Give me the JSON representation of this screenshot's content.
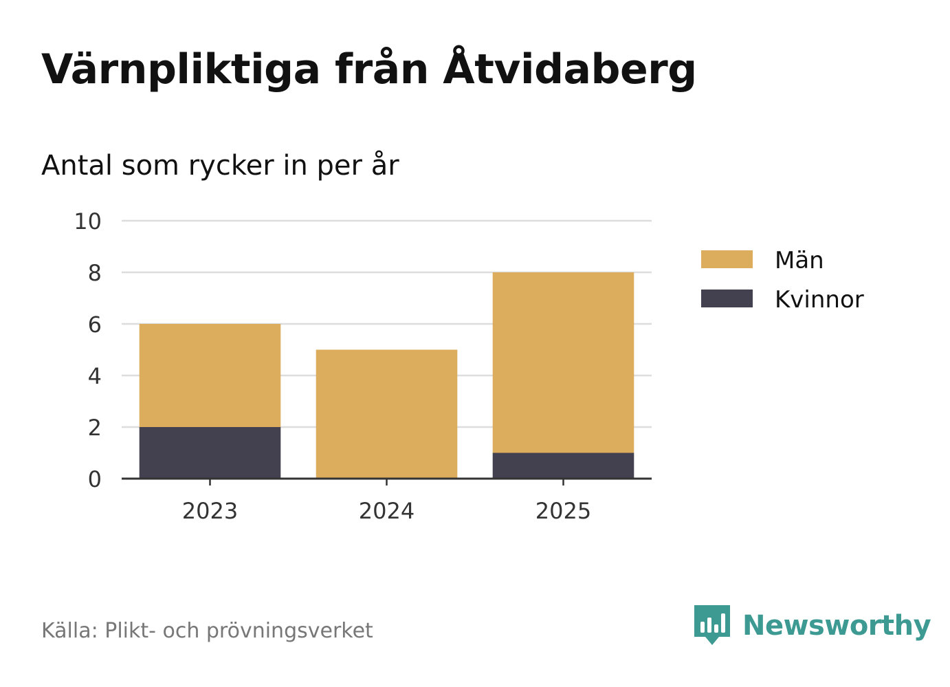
{
  "header": {
    "title": "Värnpliktiga från Åtvidaberg",
    "subtitle": "Antal som rycker in per år"
  },
  "footer": {
    "source": "Källa: Plikt- och prövningsverket",
    "brand": "Newsworthy",
    "brand_icon": "bar-chart-speech-bubble-icon",
    "brand_color": "#3d9a92"
  },
  "chart_data": {
    "type": "bar",
    "stacked": true,
    "categories": [
      "2023",
      "2024",
      "2025"
    ],
    "series": [
      {
        "name": "Kvinnor",
        "values": [
          2,
          0,
          1
        ],
        "color": "#43414f"
      },
      {
        "name": "Män",
        "values": [
          4,
          5,
          7
        ],
        "color": "#dbad5c"
      }
    ],
    "legend_order": [
      "Män",
      "Kvinnor"
    ],
    "ylim": [
      0,
      10
    ],
    "yticks": [
      0,
      2,
      4,
      6,
      8,
      10
    ],
    "grid": true,
    "legend_position": "right"
  }
}
